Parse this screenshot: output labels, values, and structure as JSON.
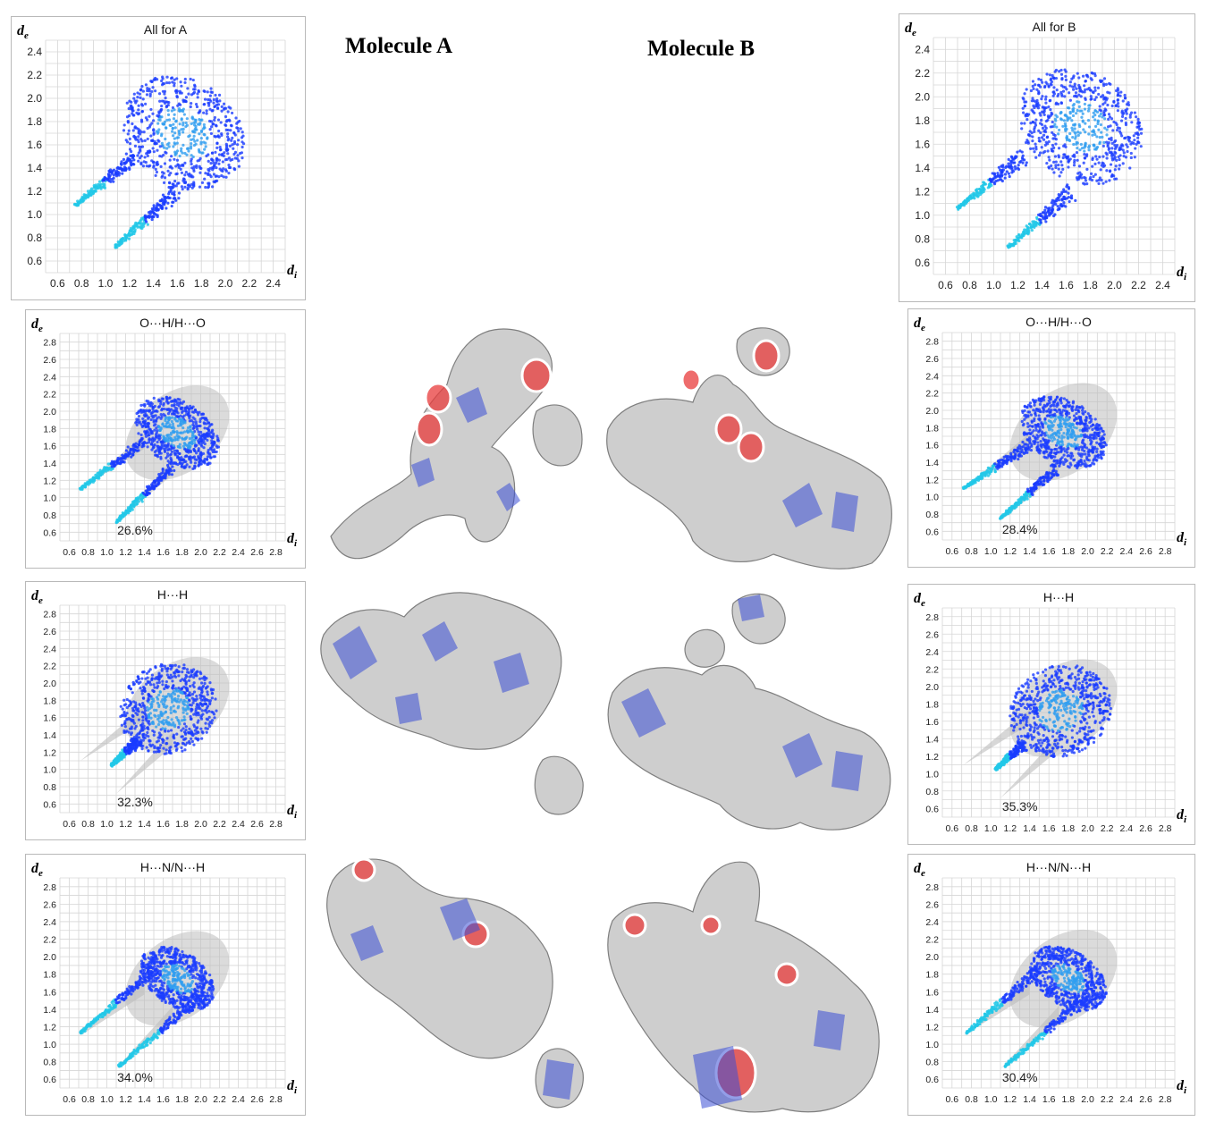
{
  "figure": {
    "title_a": "Molecule A",
    "title_b": "Molecule B",
    "colors": {
      "points": "#1a3cff",
      "points_light": "#2f9df0",
      "spike": "#22c8e8",
      "gray": "#bdbdbd",
      "grid": "#d6d6d6",
      "surface": "#c9c9c9",
      "surface_edge": "#7f7f7f",
      "red_spot": "#e83b3b",
      "blue_patch": "#3a4fd6"
    }
  },
  "chart_data": [
    {
      "id": "all-a",
      "type": "scatter",
      "title": "All for A",
      "xlabel": "d_i",
      "ylabel": "d_e",
      "x_ticks": [
        "0.6",
        "0.8",
        "1.0",
        "1.2",
        "1.4",
        "1.6",
        "1.8",
        "2.0",
        "2.2",
        "2.4"
      ],
      "y_ticks": [
        "0.6",
        "0.8",
        "1.0",
        "1.2",
        "1.4",
        "1.6",
        "1.8",
        "2.0",
        "2.2",
        "2.4"
      ],
      "xlim": [
        0.5,
        2.5
      ],
      "ylim": [
        0.5,
        2.5
      ],
      "percentage": null,
      "background_gray": false,
      "spikes": [
        {
          "tip_x": 0.75,
          "tip_y": 1.08,
          "end_x": 1.25,
          "end_y": 1.5
        },
        {
          "tip_x": 1.08,
          "tip_y": 0.72,
          "end_x": 1.6,
          "end_y": 1.2
        }
      ],
      "cloud": {
        "cx": 1.65,
        "cy": 1.7,
        "rx": 0.55,
        "ry": 0.45
      }
    },
    {
      "id": "all-b",
      "type": "scatter",
      "title": "All for B",
      "xlabel": "d_i",
      "ylabel": "d_e",
      "x_ticks": [
        "0.6",
        "0.8",
        "1.0",
        "1.2",
        "1.4",
        "1.6",
        "1.8",
        "2.0",
        "2.2",
        "2.4"
      ],
      "y_ticks": [
        "0.6",
        "0.8",
        "1.0",
        "1.2",
        "1.4",
        "1.6",
        "1.8",
        "2.0",
        "2.2",
        "2.4"
      ],
      "xlim": [
        0.5,
        2.5
      ],
      "ylim": [
        0.5,
        2.5
      ],
      "percentage": null,
      "background_gray": false,
      "spikes": [
        {
          "tip_x": 0.7,
          "tip_y": 1.06,
          "end_x": 1.25,
          "end_y": 1.5
        },
        {
          "tip_x": 1.12,
          "tip_y": 0.73,
          "end_x": 1.65,
          "end_y": 1.2
        }
      ],
      "cloud": {
        "cx": 1.72,
        "cy": 1.75,
        "rx": 0.55,
        "ry": 0.45
      }
    },
    {
      "id": "oh-a",
      "type": "scatter",
      "title": "O···H/H···O",
      "xlabel": "d_i",
      "ylabel": "d_e",
      "x_ticks": [
        "0.6",
        "0.8",
        "1.0",
        "1.2",
        "1.4",
        "1.6",
        "1.8",
        "2.0",
        "2.2",
        "2.4",
        "2.6",
        "2.8"
      ],
      "y_ticks": [
        "0.6",
        "0.8",
        "1.0",
        "1.2",
        "1.4",
        "1.6",
        "1.8",
        "2.0",
        "2.2",
        "2.4",
        "2.6",
        "2.8"
      ],
      "xlim": [
        0.5,
        2.9
      ],
      "ylim": [
        0.5,
        2.9
      ],
      "percentage": "26.6%",
      "background_gray": true,
      "spikes": [
        {
          "tip_x": 0.72,
          "tip_y": 1.1,
          "end_x": 1.4,
          "end_y": 1.65
        },
        {
          "tip_x": 1.1,
          "tip_y": 0.72,
          "end_x": 1.7,
          "end_y": 1.35
        }
      ],
      "cloud": {
        "cx": 1.75,
        "cy": 1.75,
        "rx": 0.5,
        "ry": 0.35
      }
    },
    {
      "id": "oh-b",
      "type": "scatter",
      "title": "O···H/H···O",
      "xlabel": "d_i",
      "ylabel": "d_e",
      "x_ticks": [
        "0.6",
        "0.8",
        "1.0",
        "1.2",
        "1.4",
        "1.6",
        "1.8",
        "2.0",
        "2.2",
        "2.4",
        "2.6",
        "2.8"
      ],
      "y_ticks": [
        "0.6",
        "0.8",
        "1.0",
        "1.2",
        "1.4",
        "1.6",
        "1.8",
        "2.0",
        "2.2",
        "2.4",
        "2.6",
        "2.8"
      ],
      "xlim": [
        0.5,
        2.9
      ],
      "ylim": [
        0.5,
        2.9
      ],
      "percentage": "28.4%",
      "background_gray": true,
      "spikes": [
        {
          "tip_x": 0.72,
          "tip_y": 1.1,
          "end_x": 1.4,
          "end_y": 1.6
        },
        {
          "tip_x": 1.1,
          "tip_y": 0.75,
          "end_x": 1.7,
          "end_y": 1.35
        }
      ],
      "cloud": {
        "cx": 1.75,
        "cy": 1.75,
        "rx": 0.5,
        "ry": 0.35
      }
    },
    {
      "id": "hh-a",
      "type": "scatter",
      "title": "H···H",
      "xlabel": "d_i",
      "ylabel": "d_e",
      "x_ticks": [
        "0.6",
        "0.8",
        "1.0",
        "1.2",
        "1.4",
        "1.6",
        "1.8",
        "2.0",
        "2.2",
        "2.4",
        "2.6",
        "2.8"
      ],
      "y_ticks": [
        "0.6",
        "0.8",
        "1.0",
        "1.2",
        "1.4",
        "1.6",
        "1.8",
        "2.0",
        "2.2",
        "2.4",
        "2.6",
        "2.8"
      ],
      "xlim": [
        0.5,
        2.9
      ],
      "ylim": [
        0.5,
        2.9
      ],
      "percentage": "32.3%",
      "background_gray": true,
      "spikes": [
        {
          "tip_x": 1.05,
          "tip_y": 1.05,
          "end_x": 1.35,
          "end_y": 1.35
        }
      ],
      "cloud": {
        "cx": 1.65,
        "cy": 1.7,
        "rx": 0.5,
        "ry": 0.55
      }
    },
    {
      "id": "hh-b",
      "type": "scatter",
      "title": "H···H",
      "xlabel": "d_i",
      "ylabel": "d_e",
      "x_ticks": [
        "0.6",
        "0.8",
        "1.0",
        "1.2",
        "1.4",
        "1.6",
        "1.8",
        "2.0",
        "2.2",
        "2.4",
        "2.6",
        "2.8"
      ],
      "y_ticks": [
        "0.6",
        "0.8",
        "1.0",
        "1.2",
        "1.4",
        "1.6",
        "1.8",
        "2.0",
        "2.2",
        "2.4",
        "2.6",
        "2.8"
      ],
      "xlim": [
        0.5,
        2.9
      ],
      "ylim": [
        0.5,
        2.9
      ],
      "percentage": "35.3%",
      "background_gray": true,
      "spikes": [
        {
          "tip_x": 1.05,
          "tip_y": 1.05,
          "end_x": 1.35,
          "end_y": 1.35
        }
      ],
      "cloud": {
        "cx": 1.72,
        "cy": 1.72,
        "rx": 0.5,
        "ry": 0.55
      }
    },
    {
      "id": "hn-a",
      "type": "scatter",
      "title": "H···N/N···H",
      "xlabel": "d_i",
      "ylabel": "d_e",
      "x_ticks": [
        "0.6",
        "0.8",
        "1.0",
        "1.2",
        "1.4",
        "1.6",
        "1.8",
        "2.0",
        "2.2",
        "2.4",
        "2.6",
        "2.8"
      ],
      "y_ticks": [
        "0.6",
        "0.8",
        "1.0",
        "1.2",
        "1.4",
        "1.6",
        "1.8",
        "2.0",
        "2.2",
        "2.4",
        "2.6",
        "2.8"
      ],
      "xlim": [
        0.5,
        2.9
      ],
      "ylim": [
        0.5,
        2.9
      ],
      "percentage": "34.0%",
      "background_gray": true,
      "spikes": [
        {
          "tip_x": 0.72,
          "tip_y": 1.13,
          "end_x": 1.5,
          "end_y": 1.85
        },
        {
          "tip_x": 1.13,
          "tip_y": 0.75,
          "end_x": 2.0,
          "end_y": 1.55
        }
      ],
      "cloud": {
        "cx": 1.75,
        "cy": 1.75,
        "rx": 0.45,
        "ry": 0.3
      }
    },
    {
      "id": "hn-b",
      "type": "scatter",
      "title": "H···N/N···H",
      "xlabel": "d_i",
      "ylabel": "d_e",
      "x_ticks": [
        "0.6",
        "0.8",
        "1.0",
        "1.2",
        "1.4",
        "1.6",
        "1.8",
        "2.0",
        "2.2",
        "2.4",
        "2.6",
        "2.8"
      ],
      "y_ticks": [
        "0.6",
        "0.8",
        "1.0",
        "1.2",
        "1.4",
        "1.6",
        "1.8",
        "2.0",
        "2.2",
        "2.4",
        "2.6",
        "2.8"
      ],
      "xlim": [
        0.5,
        2.9
      ],
      "ylim": [
        0.5,
        2.9
      ],
      "percentage": "30.4%",
      "background_gray": true,
      "spikes": [
        {
          "tip_x": 0.75,
          "tip_y": 1.13,
          "end_x": 1.5,
          "end_y": 1.85
        },
        {
          "tip_x": 1.15,
          "tip_y": 0.75,
          "end_x": 2.0,
          "end_y": 1.55
        }
      ],
      "cloud": {
        "cx": 1.8,
        "cy": 1.75,
        "rx": 0.45,
        "ry": 0.3
      }
    }
  ]
}
